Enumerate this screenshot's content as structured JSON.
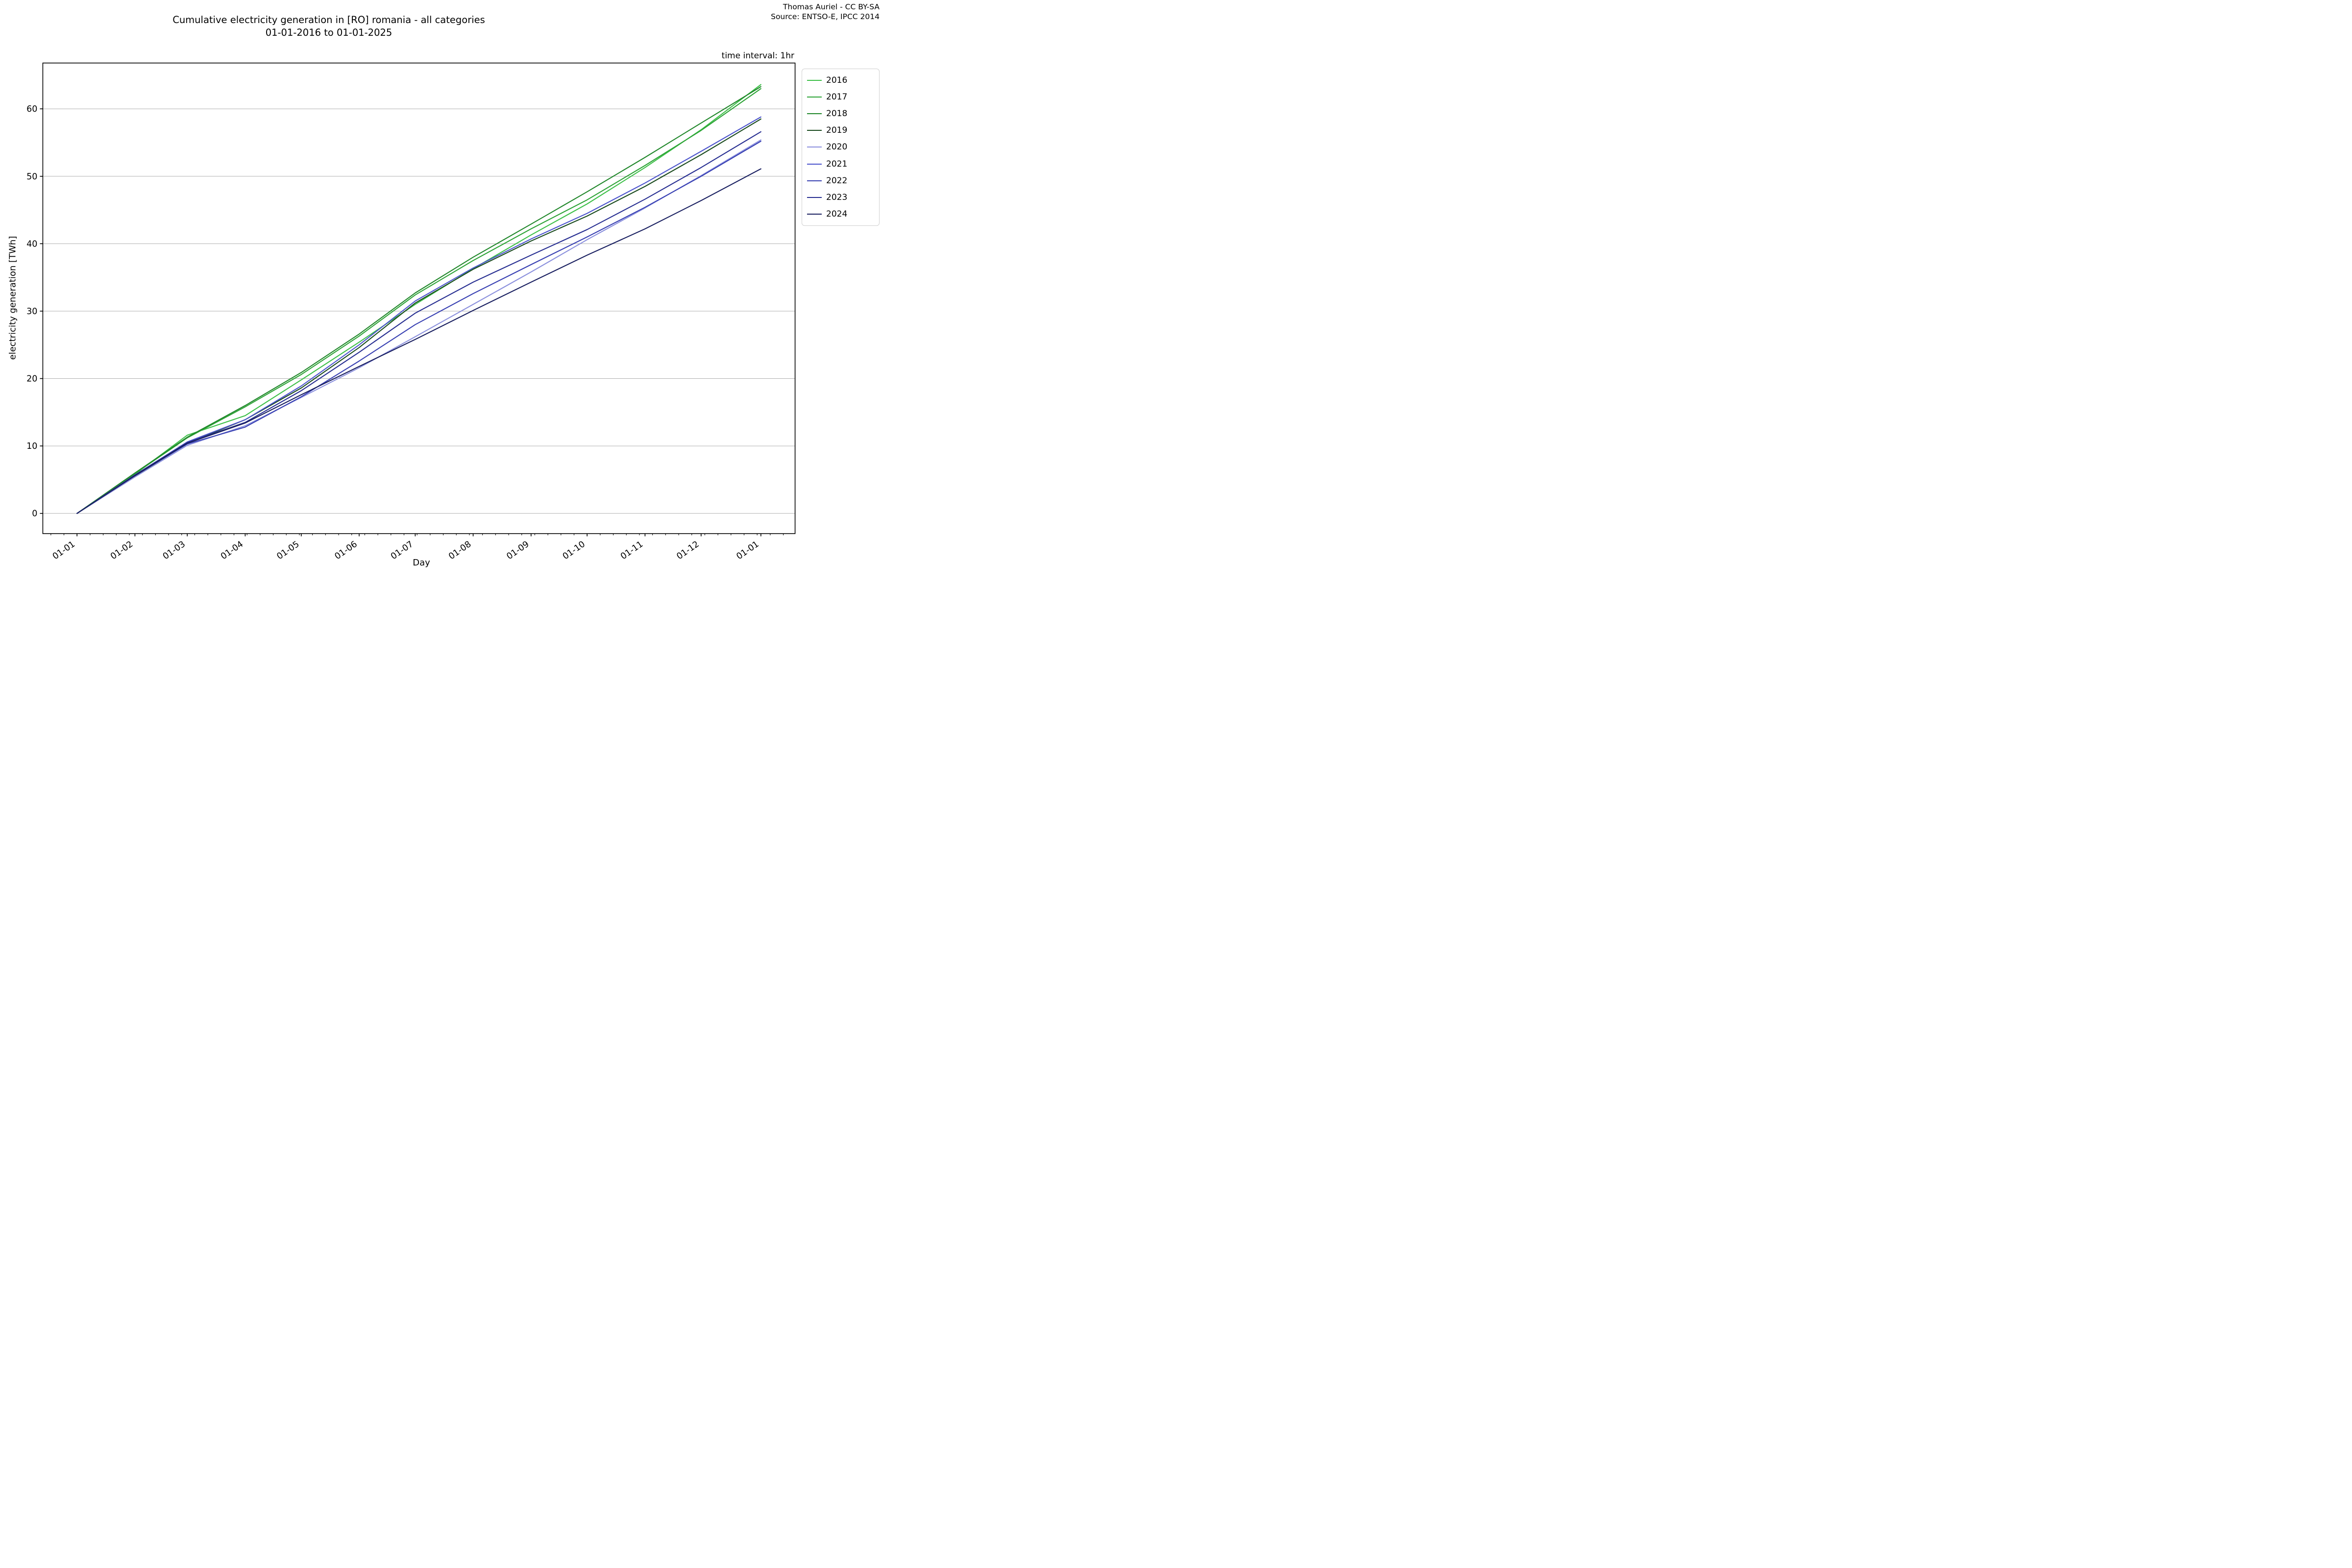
{
  "attribution": {
    "line1": "Thomas Auriel - CC BY-SA",
    "line2": "Source: ENTSO-E, IPCC 2014"
  },
  "annotation": {
    "text": "time interval: 1hr"
  },
  "chart_data": {
    "type": "line",
    "title_line1": "Cumulative electricity generation in [RO] romania - all categories",
    "title_line2": "01-01-2016 to 01-01-2025",
    "xlabel": "Day",
    "ylabel": "electricity generation [TWh]",
    "x_unit": "day-of-year",
    "grid": "horizontal",
    "legend_position": "outside-upper-right",
    "xlim_days": [
      -18.3,
      384.3
    ],
    "ylim": [
      -3.0,
      66.8
    ],
    "y_ticks": [
      0,
      10,
      20,
      30,
      40,
      50,
      60
    ],
    "x_tick_days": [
      0,
      31,
      59,
      90,
      120,
      151,
      181,
      212,
      243,
      273,
      304,
      334,
      366
    ],
    "x_tick_labels": [
      "01-01",
      "01-02",
      "01-03",
      "01-04",
      "01-05",
      "01-06",
      "01-07",
      "01-08",
      "01-09",
      "01-10",
      "01-11",
      "01-12",
      "01-01"
    ],
    "x_minor_tick_step_days": 7,
    "sample_days": [
      0,
      31,
      59,
      90,
      120,
      151,
      181,
      212,
      243,
      273,
      304,
      334,
      366
    ],
    "series": [
      {
        "name": "2016",
        "color": "#3cbf47",
        "values": [
          0,
          5.8,
          11.6,
          14.5,
          19.8,
          25.4,
          31.0,
          36.3,
          41.3,
          45.9,
          51.3,
          56.9,
          63.6
        ]
      },
      {
        "name": "2017",
        "color": "#2da336",
        "values": [
          0,
          5.9,
          11.2,
          15.8,
          20.6,
          26.3,
          32.4,
          37.5,
          42.2,
          46.5,
          51.6,
          56.8,
          63.0
        ]
      },
      {
        "name": "2018",
        "color": "#20872a",
        "values": [
          0,
          6.0,
          11.3,
          16.0,
          20.9,
          26.6,
          32.7,
          38.0,
          42.9,
          47.7,
          52.8,
          57.9,
          63.3
        ]
      },
      {
        "name": "2019",
        "color": "#1a4a1e",
        "values": [
          0,
          5.5,
          10.4,
          13.9,
          18.6,
          24.6,
          31.2,
          36.2,
          40.4,
          44.1,
          48.5,
          53.2,
          58.5
        ]
      },
      {
        "name": "2020",
        "color": "#8b90dd",
        "values": [
          0,
          5.4,
          10.1,
          13.0,
          17.2,
          21.6,
          26.2,
          31.0,
          35.8,
          40.6,
          45.3,
          50.1,
          55.4
        ]
      },
      {
        "name": "2021",
        "color": "#4a52cc",
        "values": [
          0,
          5.7,
          10.6,
          13.9,
          18.9,
          25.0,
          31.5,
          36.4,
          40.7,
          44.5,
          49.0,
          53.7,
          58.8
        ]
      },
      {
        "name": "2022",
        "color": "#3840b2",
        "values": [
          0,
          5.6,
          10.3,
          12.8,
          17.3,
          22.6,
          28.0,
          32.6,
          36.9,
          41.0,
          45.4,
          50.0,
          55.2
        ]
      },
      {
        "name": "2023",
        "color": "#272e91",
        "values": [
          0,
          5.7,
          10.5,
          13.5,
          18.2,
          23.9,
          29.7,
          34.3,
          38.3,
          42.1,
          46.6,
          51.3,
          56.6
        ]
      },
      {
        "name": "2024",
        "color": "#191f60",
        "values": [
          0,
          5.6,
          10.4,
          13.4,
          17.6,
          21.8,
          25.8,
          30.1,
          34.3,
          38.3,
          42.2,
          46.4,
          51.1
        ]
      }
    ],
    "colors": {
      "grid": "#b0b0b0",
      "spine": "#000000",
      "tick_text": "#000000"
    }
  }
}
